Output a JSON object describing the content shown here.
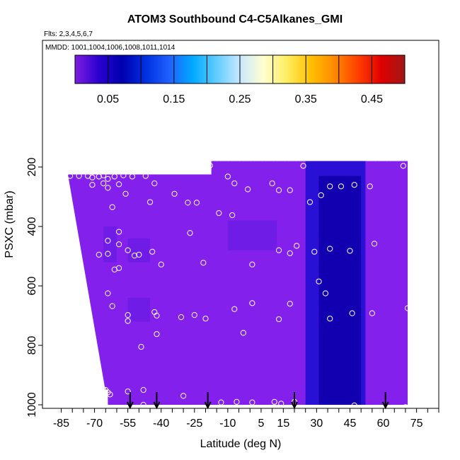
{
  "chart_data": {
    "type": "heatmap",
    "title": "ATOM3 Southbound C4-C5Alkanes_GMI",
    "subtitle_flights": "Flts: 2,3,4,5,6,7",
    "subtitle_dates": "MMDD: 1001,1004,1006,1008,1011,1014",
    "xlabel": "Latitude (deg N)",
    "ylabel": "PSXC (mbar)",
    "xlim": [
      -85,
      85
    ],
    "ylim": [
      1000,
      0
    ],
    "x_ticks": [
      -85,
      -70,
      -55,
      -40,
      -25,
      -10,
      5,
      15,
      30,
      45,
      60,
      75
    ],
    "x_tick_labels": [
      "-85",
      "-70",
      "-55",
      "-40",
      "-25",
      "-10",
      "5",
      "15",
      "30",
      "45",
      "60",
      "75"
    ],
    "y_ticks": [
      200,
      400,
      600,
      800,
      1000
    ],
    "y_tick_labels": [
      "200",
      "400",
      "600",
      "800",
      "1000"
    ],
    "colorbar": {
      "range": [
        0,
        0.5
      ],
      "ticks": [
        0.05,
        0.15,
        0.25,
        0.35,
        0.45
      ],
      "tick_labels": [
        "0.05",
        "0.15",
        "0.25",
        "0.35",
        "0.45"
      ],
      "colors": [
        "#7f1fe0",
        "#2a00d0",
        "#0000b0",
        "#0030e0",
        "#2060ff",
        "#00aaff",
        "#60ccff",
        "#c8e8ff",
        "#ffffd0",
        "#ffee60",
        "#ffc000",
        "#ff8a00",
        "#ff4000",
        "#e00000",
        "#a01818"
      ]
    },
    "field": {
      "colors": {
        "base": "#8420ec",
        "mid": "#6a1ce6",
        "dark": "#2a10d4",
        "navy": "#1200b0"
      },
      "coverage": {
        "lat_min": -82,
        "lat_max": 71,
        "pres_top_south": 225,
        "pres_top_north": 180,
        "lat_top_step": -17
      },
      "features": [
        {
          "lat": [
            25,
            52
          ],
          "pres": [
            180,
            1000
          ],
          "level": "dark"
        },
        {
          "lat": [
            31,
            50
          ],
          "pres": [
            230,
            1000
          ],
          "level": "navy"
        },
        {
          "lat": [
            -66,
            -60
          ],
          "pres": [
            400,
            520
          ],
          "level": "mid"
        },
        {
          "lat": [
            -55,
            -45
          ],
          "pres": [
            440,
            520
          ],
          "level": "mid"
        },
        {
          "lat": [
            -55,
            -45
          ],
          "pres": [
            640,
            720
          ],
          "level": "mid"
        },
        {
          "lat": [
            -10,
            12
          ],
          "pres": [
            380,
            480
          ],
          "level": "mid"
        }
      ]
    },
    "flight_markers_lat": [
      -54,
      -42,
      -19,
      20,
      61
    ],
    "observations": [
      [
        -81,
        230
      ],
      [
        -77,
        230
      ],
      [
        -73,
        230
      ],
      [
        -71,
        235
      ],
      [
        -68,
        232
      ],
      [
        -66,
        228
      ],
      [
        -64,
        240
      ],
      [
        -61,
        232
      ],
      [
        -57,
        228
      ],
      [
        -53,
        232
      ],
      [
        -47,
        230
      ],
      [
        -71,
        260
      ],
      [
        -66,
        255
      ],
      [
        -64,
        270
      ],
      [
        -59,
        258
      ],
      [
        -56,
        290
      ],
      [
        -43,
        255
      ],
      [
        -62,
        335
      ],
      [
        -45,
        318
      ],
      [
        -34,
        290
      ],
      [
        -28,
        320
      ],
      [
        -24,
        320
      ],
      [
        -18,
        195
      ],
      [
        -10,
        232
      ],
      [
        -7,
        255
      ],
      [
        -1,
        275
      ],
      [
        10,
        255
      ],
      [
        13,
        278
      ],
      [
        18,
        278
      ],
      [
        24,
        196
      ],
      [
        27,
        318
      ],
      [
        32,
        295
      ],
      [
        36,
        265
      ],
      [
        41,
        265
      ],
      [
        47,
        260
      ],
      [
        54,
        265
      ],
      [
        69,
        196
      ],
      [
        -14,
        355
      ],
      [
        -8,
        362
      ],
      [
        -59,
        418
      ],
      [
        -27,
        422
      ],
      [
        -64,
        448
      ],
      [
        -59,
        460
      ],
      [
        -55,
        480
      ],
      [
        -52,
        498
      ],
      [
        -50,
        495
      ],
      [
        -44,
        485
      ],
      [
        -68,
        495
      ],
      [
        -64,
        492
      ],
      [
        -40,
        528
      ],
      [
        -59,
        540
      ],
      [
        -61,
        545
      ],
      [
        -21,
        522
      ],
      [
        1,
        528
      ],
      [
        13,
        480
      ],
      [
        18,
        490
      ],
      [
        21,
        465
      ],
      [
        29,
        485
      ],
      [
        36,
        475
      ],
      [
        45,
        482
      ],
      [
        56,
        458
      ],
      [
        -64,
        625
      ],
      [
        -62,
        668
      ],
      [
        -55,
        698
      ],
      [
        -55,
        718
      ],
      [
        -43,
        688
      ],
      [
        -42,
        700
      ],
      [
        -31,
        705
      ],
      [
        -25,
        698
      ],
      [
        -20,
        710
      ],
      [
        -7,
        678
      ],
      [
        1,
        658
      ],
      [
        13,
        712
      ],
      [
        18,
        660
      ],
      [
        31,
        585
      ],
      [
        34,
        625
      ],
      [
        36,
        710
      ],
      [
        46,
        692
      ],
      [
        55,
        692
      ],
      [
        71,
        675
      ],
      [
        -42,
        762
      ],
      [
        -3,
        758
      ],
      [
        -49,
        805
      ],
      [
        -65,
        950
      ],
      [
        -64,
        958
      ],
      [
        -63,
        965
      ],
      [
        -66,
        948
      ],
      [
        -55,
        955
      ],
      [
        -48,
        950
      ],
      [
        -30,
        970
      ],
      [
        -13,
        992
      ],
      [
        -6,
        990
      ],
      [
        1,
        992
      ],
      [
        11,
        990
      ],
      [
        14,
        996
      ],
      [
        20,
        990
      ],
      [
        -48,
        1000
      ],
      [
        35,
        1010
      ],
      [
        47,
        1002
      ],
      [
        70,
        1008
      ]
    ]
  }
}
